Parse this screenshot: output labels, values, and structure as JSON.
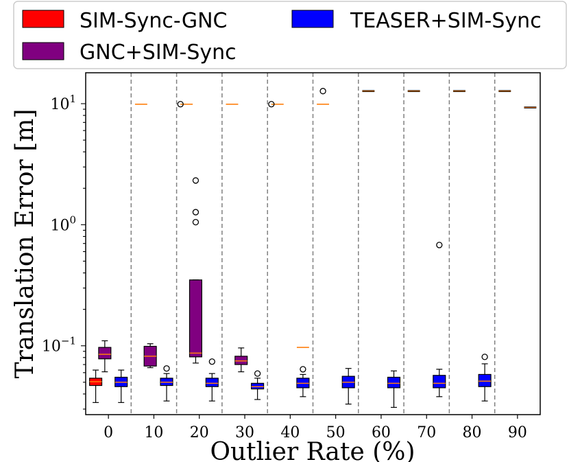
{
  "chart_data": {
    "type": "boxplot",
    "xlabel": "Outlier Rate (%)",
    "ylabel": "Translation Error [m]",
    "yscale": "log",
    "ylim": [
      0.027,
      18
    ],
    "ytick_labels": [
      {
        "value": 0.1,
        "base": "10",
        "exp": "−1"
      },
      {
        "value": 1,
        "base": "10",
        "exp": "0"
      },
      {
        "value": 10,
        "base": "10",
        "exp": "1"
      }
    ],
    "categories": [
      "0",
      "10",
      "20",
      "30",
      "40",
      "50",
      "60",
      "70",
      "80",
      "90"
    ],
    "legend": {
      "position": "top",
      "entries": [
        {
          "name": "SIM-Sync-GNC",
          "color": "#ff0000"
        },
        {
          "name": "TEASER+SIM-Sync",
          "color": "#0000ff"
        },
        {
          "name": "GNC+SIM-Sync",
          "color": "#800080"
        }
      ]
    },
    "series": [
      {
        "name": "SIM-Sync-GNC",
        "color": "#ff0000",
        "offset": -0.28,
        "boxes": [
          {
            "cat": 0,
            "q1": 0.047,
            "med": 0.0505,
            "q3": 0.054,
            "wlo": 0.034,
            "whi": 0.063,
            "outliers": []
          }
        ]
      },
      {
        "name": "GNC+SIM-Sync",
        "color": "#800080",
        "offset": -0.08,
        "boxes": [
          {
            "cat": 0,
            "q1": 0.078,
            "med": 0.085,
            "q3": 0.097,
            "wlo": 0.061,
            "whi": 0.11,
            "outliers": []
          },
          {
            "cat": 1,
            "q1": 0.068,
            "med": 0.082,
            "q3": 0.099,
            "wlo": 0.066,
            "whi": 0.104,
            "outliers": []
          },
          {
            "cat": 2,
            "q1": 0.081,
            "med": 0.087,
            "q3": 0.35,
            "wlo": 0.072,
            "whi": 0.35,
            "outliers": [
              1.05,
              1.27,
              2.32
            ]
          },
          {
            "cat": 3,
            "q1": 0.07,
            "med": 0.075,
            "q3": 0.082,
            "wlo": 0.061,
            "whi": 0.096,
            "outliers": []
          }
        ]
      },
      {
        "name": "TEASER+SIM-Sync",
        "color": "#0000ff",
        "offset": 0.28,
        "boxes": [
          {
            "cat": 0,
            "q1": 0.046,
            "med": 0.05,
            "q3": 0.055,
            "wlo": 0.034,
            "whi": 0.063,
            "outliers": []
          },
          {
            "cat": 1,
            "q1": 0.047,
            "med": 0.05,
            "q3": 0.054,
            "wlo": 0.035,
            "whi": 0.059,
            "outliers": [
              0.065
            ]
          },
          {
            "cat": 2,
            "q1": 0.046,
            "med": 0.049,
            "q3": 0.054,
            "wlo": 0.035,
            "whi": 0.059,
            "outliers": [
              0.074
            ]
          },
          {
            "cat": 3,
            "q1": 0.044,
            "med": 0.046,
            "q3": 0.049,
            "wlo": 0.036,
            "whi": 0.054,
            "outliers": [
              0.059
            ]
          },
          {
            "cat": 4,
            "q1": 0.045,
            "med": 0.049,
            "q3": 0.054,
            "wlo": 0.038,
            "whi": 0.058,
            "outliers": [
              0.064
            ]
          },
          {
            "cat": 5,
            "q1": 0.045,
            "med": 0.05,
            "q3": 0.056,
            "wlo": 0.033,
            "whi": 0.065,
            "outliers": []
          },
          {
            "cat": 6,
            "q1": 0.045,
            "med": 0.049,
            "q3": 0.055,
            "wlo": 0.031,
            "whi": 0.062,
            "outliers": []
          },
          {
            "cat": 7,
            "q1": 0.045,
            "med": 0.049,
            "q3": 0.057,
            "wlo": 0.038,
            "whi": 0.064,
            "outliers": [
              0.68
            ]
          },
          {
            "cat": 8,
            "q1": 0.046,
            "med": 0.051,
            "q3": 0.058,
            "wlo": 0.035,
            "whi": 0.071,
            "outliers": [
              0.081
            ]
          }
        ]
      }
    ],
    "flat_lines": [
      {
        "cat": 1,
        "offset": -0.28,
        "value": 9.9,
        "color": "#ff7f0e"
      },
      {
        "cat": 2,
        "offset": -0.28,
        "value": 9.9,
        "color": "#ff7f0e",
        "outliers": [
          9.9
        ]
      },
      {
        "cat": 3,
        "offset": -0.28,
        "value": 9.9,
        "color": "#ff7f0e"
      },
      {
        "cat": 4,
        "offset": -0.28,
        "value": 9.9,
        "color": "#ff7f0e",
        "outliers": [
          9.9
        ]
      },
      {
        "cat": 4,
        "offset": 0.28,
        "value": 0.097,
        "color": "#ff7f0e"
      },
      {
        "cat": 5,
        "offset": -0.28,
        "value": 9.9,
        "color": "#ff7f0e",
        "outliers": [
          12.7
        ]
      },
      {
        "cat": 6,
        "offset": -0.28,
        "value": 12.7,
        "color": "#000000"
      },
      {
        "cat": 7,
        "offset": -0.28,
        "value": 12.7,
        "color": "#000000"
      },
      {
        "cat": 8,
        "offset": -0.28,
        "value": 12.7,
        "color": "#000000"
      },
      {
        "cat": 9,
        "offset": -0.28,
        "value": 12.7,
        "color": "#000000"
      },
      {
        "cat": 9,
        "offset": 0.28,
        "value": 9.3,
        "color": "#000000"
      }
    ]
  }
}
